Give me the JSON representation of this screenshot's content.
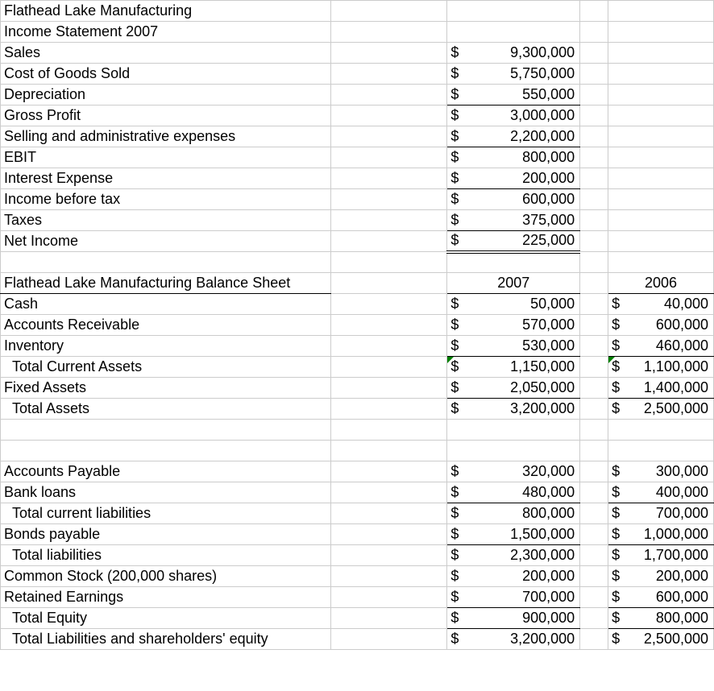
{
  "income": {
    "title1": "Flathead Lake Manufacturing",
    "title2": "Income Statement 2007",
    "rows": [
      {
        "label": "Sales",
        "val": "9,300,000"
      },
      {
        "label": "Cost of Goods Sold",
        "val": "5,750,000"
      },
      {
        "label": "Depreciation",
        "val": "550,000",
        "ul_bot": true
      },
      {
        "label": "Gross Profit",
        "val": "3,000,000"
      },
      {
        "label": "Selling and administrative expenses",
        "val": "2,200,000",
        "ul_bot": true
      },
      {
        "label": "EBIT",
        "val": "800,000"
      },
      {
        "label": "Interest Expense",
        "val": "200,000",
        "ul_bot": true
      },
      {
        "label": "Income before tax",
        "val": "600,000"
      },
      {
        "label": "Taxes",
        "val": "375,000",
        "ul_bot": true
      },
      {
        "label": "Net Income",
        "val": "225,000",
        "dbl_bot": true
      }
    ],
    "currency": "$"
  },
  "balance": {
    "title": "Flathead Lake Manufacturing Balance Sheet",
    "year1": "2007",
    "year2": "2006",
    "currency": "$",
    "rows": [
      {
        "label": "Cash",
        "v1": "50,000",
        "v2": "40,000"
      },
      {
        "label": "Accounts Receivable",
        "v1": "570,000",
        "v2": "600,000"
      },
      {
        "label": "Inventory",
        "v1": "530,000",
        "v2": "460,000",
        "ul_bot": true
      },
      {
        "label": "Total Current Assets",
        "indent": true,
        "v1": "1,150,000",
        "v2": "1,100,000",
        "mark": true,
        "tight": true
      },
      {
        "label": "Fixed Assets",
        "v1": "2,050,000",
        "v2": "1,400,000",
        "ul_bot": true,
        "tight2": true
      },
      {
        "label": "Total Assets",
        "indent": true,
        "v1": "3,200,000",
        "v2": "2,500,000",
        "tight": true,
        "tight2": true
      },
      {
        "blank": true
      },
      {
        "blank": true
      },
      {
        "label": "Accounts Payable",
        "v1": "320,000",
        "v2": "300,000"
      },
      {
        "label": "Bank loans",
        "v1": "480,000",
        "v2": "400,000",
        "ul_bot": true
      },
      {
        "label": "Total current liabilities",
        "indent": true,
        "v1": "800,000",
        "v2": "700,000"
      },
      {
        "label": "Bonds payable",
        "v1": "1,500,000",
        "v2": "1,000,000",
        "ul_bot": true,
        "tight2": true
      },
      {
        "label": "Total liabilities",
        "indent": true,
        "v1": "2,300,000",
        "v2": "1,700,000",
        "tight": true,
        "tight2": true
      },
      {
        "label": "Common Stock (200,000 shares)",
        "v1": "200,000",
        "v2": "200,000"
      },
      {
        "label": "Retained Earnings",
        "v1": "700,000",
        "v2": "600,000",
        "ul_bot": true
      },
      {
        "label": "Total Equity",
        "indent": true,
        "v1": "900,000",
        "v2": "800,000",
        "ul_bot": true
      },
      {
        "label": "Total Liabilities and shareholders' equity",
        "indent": true,
        "v1": "3,200,000",
        "v2": "2,500,000",
        "tight": true,
        "tight2": true
      }
    ]
  }
}
